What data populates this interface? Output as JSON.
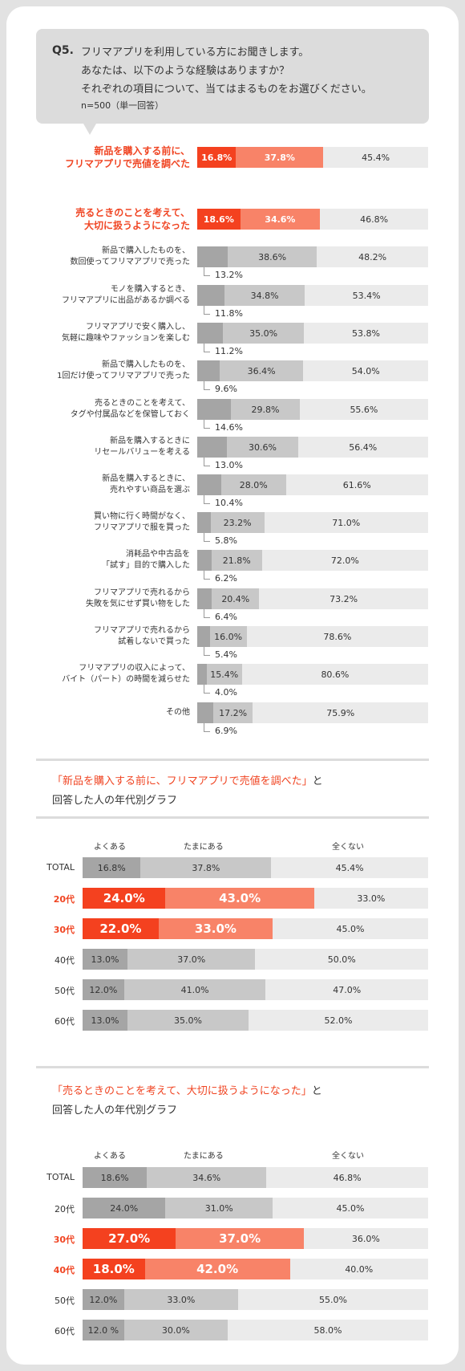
{
  "question": {
    "number": "Q5.",
    "lines": [
      "フリマアプリを利用している方にお聞きします。",
      "あなたは、以下のような経験はありますか？",
      "それぞれの項目について、当てはまるものをお選びください。"
    ],
    "note": "n=500（単一回答）"
  },
  "colors": {
    "often_gray": "#a5a5a5",
    "sometimes_gray": "#c8c8c8",
    "never_gray": "#ebebeb",
    "accent": "#f04523",
    "accent_light": "#f88368"
  },
  "chart_data": [
    {
      "type": "bar",
      "stacked": true,
      "orientation": "horizontal",
      "legend": [
        "よくある",
        "たまにある",
        "全くない"
      ],
      "items": [
        {
          "lines": [
            "新品を購入する前に、",
            "フリマアプリで売値を調べた"
          ],
          "values": [
            16.8,
            37.8,
            45.4
          ],
          "labels": [
            "16.8%",
            "37.8%",
            "45.4%"
          ],
          "highlight": true
        },
        {
          "lines": [
            "売るときのことを考えて、",
            "大切に扱うようになった"
          ],
          "values": [
            18.6,
            34.6,
            46.8
          ],
          "labels": [
            "18.6%",
            "34.6%",
            "46.8%"
          ],
          "highlight": true
        },
        {
          "lines": [
            "新品で購入したものを、",
            "数回使ってフリマアプリで売った"
          ],
          "values": [
            13.2,
            38.6,
            48.2
          ],
          "labels": [
            "13.2%",
            "38.6%",
            "48.2%"
          ]
        },
        {
          "lines": [
            "モノを購入するとき、",
            "フリマアプリに出品があるか調べる"
          ],
          "values": [
            11.8,
            34.8,
            53.4
          ],
          "labels": [
            "11.8%",
            "34.8%",
            "53.4%"
          ]
        },
        {
          "lines": [
            "フリマアプリで安く購入し、",
            "気軽に趣味やファッションを楽しむ"
          ],
          "values": [
            11.2,
            35.0,
            53.8
          ],
          "labels": [
            "11.2%",
            "35.0%",
            "53.8%"
          ]
        },
        {
          "lines": [
            "新品で購入したものを、",
            "1回だけ使ってフリマアプリで売った"
          ],
          "values": [
            9.6,
            36.4,
            54.0
          ],
          "labels": [
            "9.6%",
            "36.4%",
            "54.0%"
          ]
        },
        {
          "lines": [
            "売るときのことを考えて、",
            "タグや付属品などを保管しておく"
          ],
          "values": [
            14.6,
            29.8,
            55.6
          ],
          "labels": [
            "14.6%",
            "29.8%",
            "55.6%"
          ]
        },
        {
          "lines": [
            "新品を購入するときに",
            "リセールバリューを考える"
          ],
          "values": [
            13.0,
            30.6,
            56.4
          ],
          "labels": [
            "13.0%",
            "30.6%",
            "56.4%"
          ]
        },
        {
          "lines": [
            "新品を購入するときに、",
            "売れやすい商品を選ぶ"
          ],
          "values": [
            10.4,
            28.0,
            61.6
          ],
          "labels": [
            "10.4%",
            "28.0%",
            "61.6%"
          ]
        },
        {
          "lines": [
            "買い物に行く時間がなく、",
            "フリマアプリで服を買った"
          ],
          "values": [
            5.8,
            23.2,
            71.0
          ],
          "labels": [
            "5.8%",
            "23.2%",
            "71.0%"
          ]
        },
        {
          "lines": [
            "消耗品や中古品を",
            "「試す」目的で購入した"
          ],
          "values": [
            6.2,
            21.8,
            72.0
          ],
          "labels": [
            "6.2%",
            "21.8%",
            "72.0%"
          ]
        },
        {
          "lines": [
            "フリマアプリで売れるから",
            "失敗を気にせず買い物をした"
          ],
          "values": [
            6.4,
            20.4,
            73.2
          ],
          "labels": [
            "6.4%",
            "20.4%",
            "73.2%"
          ]
        },
        {
          "lines": [
            "フリマアプリで売れるから",
            "試着しないで買った"
          ],
          "values": [
            5.4,
            16.0,
            78.6
          ],
          "labels": [
            "5.4%",
            "16.0%",
            "78.6%"
          ]
        },
        {
          "lines": [
            "フリマアプリの収入によって、",
            "バイト（パート）の時間を減らせた"
          ],
          "values": [
            4.0,
            15.4,
            80.6
          ],
          "labels": [
            "4.0%",
            "15.4%",
            "80.6%"
          ]
        },
        {
          "lines": [
            "その他"
          ],
          "values": [
            6.9,
            17.2,
            75.9
          ],
          "labels": [
            "6.9%",
            "17.2%",
            "75.9%"
          ]
        }
      ]
    },
    {
      "type": "bar",
      "stacked": true,
      "orientation": "horizontal",
      "title_quote": "「新品を購入する前に、フリマアプリで売値を調べた」",
      "title_after": "と",
      "title_line2": "回答した人の年代別グラフ",
      "legend": [
        "よくある",
        "たまにある",
        "全くない"
      ],
      "items": [
        {
          "group": "TOTAL",
          "values": [
            16.8,
            37.8,
            45.4
          ],
          "labels": [
            "16.8%",
            "37.8%",
            "45.4%"
          ]
        },
        {
          "group": "20代",
          "values": [
            24.0,
            43.0,
            33.0
          ],
          "labels": [
            "24.0%",
            "43.0%",
            "33.0%"
          ],
          "highlight": true
        },
        {
          "group": "30代",
          "values": [
            22.0,
            33.0,
            45.0
          ],
          "labels": [
            "22.0%",
            "33.0%",
            "45.0%"
          ],
          "highlight": true
        },
        {
          "group": "40代",
          "values": [
            13.0,
            37.0,
            50.0
          ],
          "labels": [
            "13.0%",
            "37.0%",
            "50.0%"
          ]
        },
        {
          "group": "50代",
          "values": [
            12.0,
            41.0,
            47.0
          ],
          "labels": [
            "12.0%",
            "41.0%",
            "47.0%"
          ]
        },
        {
          "group": "60代",
          "values": [
            13.0,
            35.0,
            52.0
          ],
          "labels": [
            "13.0%",
            "35.0%",
            "52.0%"
          ]
        }
      ]
    },
    {
      "type": "bar",
      "stacked": true,
      "orientation": "horizontal",
      "title_quote": "「売るときのことを考えて、大切に扱うようになった」",
      "title_after": "と",
      "title_line2": "回答した人の年代別グラフ",
      "legend": [
        "よくある",
        "たまにある",
        "全くない"
      ],
      "items": [
        {
          "group": "TOTAL",
          "values": [
            18.6,
            34.6,
            46.8
          ],
          "labels": [
            "18.6%",
            "34.6%",
            "46.8%"
          ]
        },
        {
          "group": "20代",
          "values": [
            24.0,
            31.0,
            45.0
          ],
          "labels": [
            "24.0%",
            "31.0%",
            "45.0%"
          ]
        },
        {
          "group": "30代",
          "values": [
            27.0,
            37.0,
            36.0
          ],
          "labels": [
            "27.0%",
            "37.0%",
            "36.0%"
          ],
          "highlight": true
        },
        {
          "group": "40代",
          "values": [
            18.0,
            42.0,
            40.0
          ],
          "labels": [
            "18.0%",
            "42.0%",
            "40.0%"
          ],
          "highlight": true
        },
        {
          "group": "50代",
          "values": [
            12.0,
            33.0,
            55.0
          ],
          "labels": [
            "12.0%",
            "33.0%",
            "55.0%"
          ]
        },
        {
          "group": "60代",
          "values": [
            12.0,
            30.0,
            58.0
          ],
          "labels": [
            "12.0 %",
            "30.0%",
            "58.0%"
          ]
        }
      ]
    }
  ]
}
